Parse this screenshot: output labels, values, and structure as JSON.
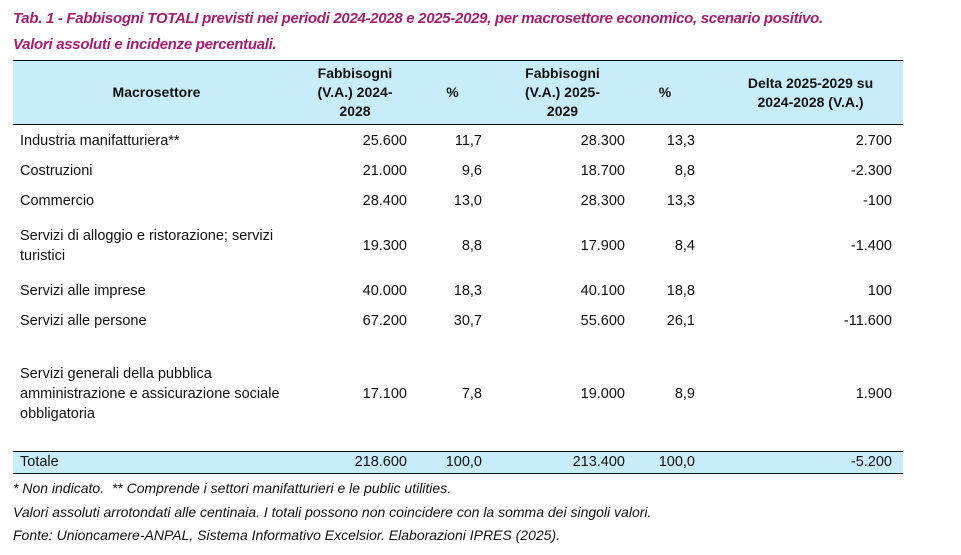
{
  "title": {
    "line1": "Tab. 1 - Fabbisogni TOTALI previsti nei periodi 2024-2028 e 2025-2029, per macrosettore economico, scenario positivo.",
    "line2": "Valori assoluti e incidenze percentuali."
  },
  "headers": [
    "Macrosettore",
    "Fabbisogni (V.A.) 2024-2028",
    "%",
    "Fabbisogni (V.A.) 2025-2029",
    "%",
    "Delta 2025-2029 su 2024-2028 (V.A.)"
  ],
  "rows": [
    [
      "Industria manifatturiera**",
      "25.600",
      "11,7",
      "28.300",
      "13,3",
      "2.700"
    ],
    [
      "Costruzioni",
      "21.000",
      "9,6",
      "18.700",
      "8,8",
      "-2.300"
    ],
    [
      "Commercio",
      "28.400",
      "13,0",
      "28.300",
      "13,3",
      "-100"
    ],
    [
      "Servizi di alloggio e ristorazione; servizi turistici",
      "19.300",
      "8,8",
      "17.900",
      "8,4",
      "-1.400"
    ],
    [
      "Servizi alle imprese",
      "40.000",
      "18,3",
      "40.100",
      "18,8",
      "100"
    ],
    [
      "Servizi alle persone",
      "67.200",
      "30,7",
      "55.600",
      "26,1",
      "-11.600"
    ],
    [
      "Servizi generali della pubblica amministrazione e assicurazione sociale obbligatoria",
      "17.100",
      "7,8",
      "19.000",
      "8,9",
      "1.900"
    ]
  ],
  "total": [
    "Totale",
    "218.600",
    "100,0",
    "213.400",
    "100,0",
    "-5.200"
  ],
  "notes": [
    "* Non indicato.  ** Comprende i settori manifatturieri e le public utilities.",
    "Valori assoluti arrotondati alle centinaia. I totali possono non coincidere con la somma dei singoli valori.",
    "Fonte: Unioncamere-ANPAL, Sistema Informativo Excelsior. Elaborazioni IPRES (2025)."
  ],
  "colors": {
    "title": "#a0206e",
    "header_bg": "#c9ecfa"
  }
}
